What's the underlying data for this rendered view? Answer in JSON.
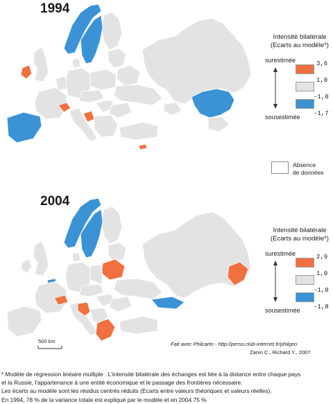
{
  "colors": {
    "over": "#f0703f",
    "neutral": "#e3e3e3",
    "under": "#3b93d6",
    "absent": "#ffffff"
  },
  "maps": [
    {
      "year": "1994",
      "legend": {
        "title_line1": "Intensité bilatérale",
        "title_line2": "(Ecarts au modèle*)",
        "over_label": "surestimée",
        "under_label": "sousestimée",
        "values": [
          "3,6",
          "1,0",
          "-1,0",
          "-1,7"
        ]
      },
      "highlighted": {
        "over": [
          "Ireland",
          "Switzerland",
          "Bosnia",
          "Cyprus"
        ],
        "under": [
          "Norway",
          "Sweden",
          "Iberia",
          "Kazakhstan"
        ]
      }
    },
    {
      "year": "2004",
      "legend": {
        "title_line1": "Intensité bilatérale",
        "title_line2": "(Ecarts au modèle*)",
        "over_label": "surestimée",
        "under_label": "sousestimée",
        "values": [
          "2,9",
          "1,0",
          "-1,0",
          "-1,8"
        ]
      },
      "highlighted": {
        "over": [
          "Belarus",
          "Switzerland",
          "Croatia",
          "Greece",
          "Kazakhstan"
        ],
        "under": [
          "Norway",
          "Sweden",
          "Netherlands",
          "Caucasus"
        ]
      }
    }
  ],
  "absence": {
    "line1": "Absence",
    "line2": "de données"
  },
  "scale_label": "500 km",
  "credit_line1": "Fait avec Philcarto - http://perso.club-internet.fr/philgeo",
  "credit_line2": "Zanin C., Richard Y., 2007",
  "footnote": [
    "* Modèle de régression linéaire  multiple :  L'intensité bilatérale des échanges est liée à la distance entre  chaque pays",
    "et  la Russie, l'appartenance à une entité économique et le passage des frontières nécessaire.",
    "Les écarts au modèle sont les résidus centrés réduits (Ecarts entre valeurs théoriques et valeurs réelles).",
    "En 1994, 78 % de la variance totale est expliqué par le modèle et en 2004 75 %"
  ]
}
